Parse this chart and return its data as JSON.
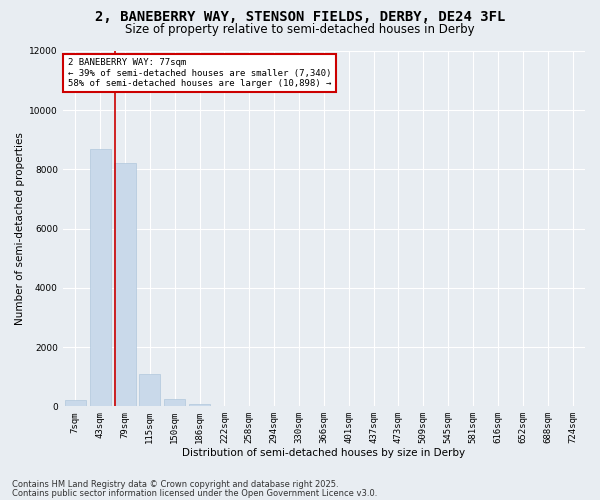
{
  "title_line1": "2, BANEBERRY WAY, STENSON FIELDS, DERBY, DE24 3FL",
  "title_line2": "Size of property relative to semi-detached houses in Derby",
  "xlabel": "Distribution of semi-detached houses by size in Derby",
  "ylabel": "Number of semi-detached properties",
  "categories": [
    "7sqm",
    "43sqm",
    "79sqm",
    "115sqm",
    "150sqm",
    "186sqm",
    "222sqm",
    "258sqm",
    "294sqm",
    "330sqm",
    "366sqm",
    "401sqm",
    "437sqm",
    "473sqm",
    "509sqm",
    "545sqm",
    "581sqm",
    "616sqm",
    "652sqm",
    "688sqm",
    "724sqm"
  ],
  "values": [
    200,
    8700,
    8200,
    1100,
    250,
    80,
    10,
    0,
    0,
    0,
    0,
    0,
    0,
    0,
    0,
    0,
    0,
    0,
    0,
    0,
    0
  ],
  "bar_color": "#c9d9ea",
  "bar_edgecolor": "#b0c8dc",
  "red_line_color": "#cc0000",
  "annotation_box_color": "#ffffff",
  "annotation_box_edgecolor": "#cc0000",
  "annotation_title": "2 BANEBERRY WAY: 77sqm",
  "annotation_line1": "← 39% of semi-detached houses are smaller (7,340)",
  "annotation_line2": "58% of semi-detached houses are larger (10,898) →",
  "ylim": [
    0,
    12000
  ],
  "yticks": [
    0,
    2000,
    4000,
    6000,
    8000,
    10000,
    12000
  ],
  "background_color": "#e8edf2",
  "plot_bg_color": "#e8edf2",
  "grid_color": "#ffffff",
  "title_fontsize": 10,
  "subtitle_fontsize": 8.5,
  "label_fontsize": 7.5,
  "tick_fontsize": 6.5,
  "annotation_fontsize": 6.5,
  "footnote_fontsize": 6.0,
  "footnote1": "Contains HM Land Registry data © Crown copyright and database right 2025.",
  "footnote2": "Contains public sector information licensed under the Open Government Licence v3.0."
}
